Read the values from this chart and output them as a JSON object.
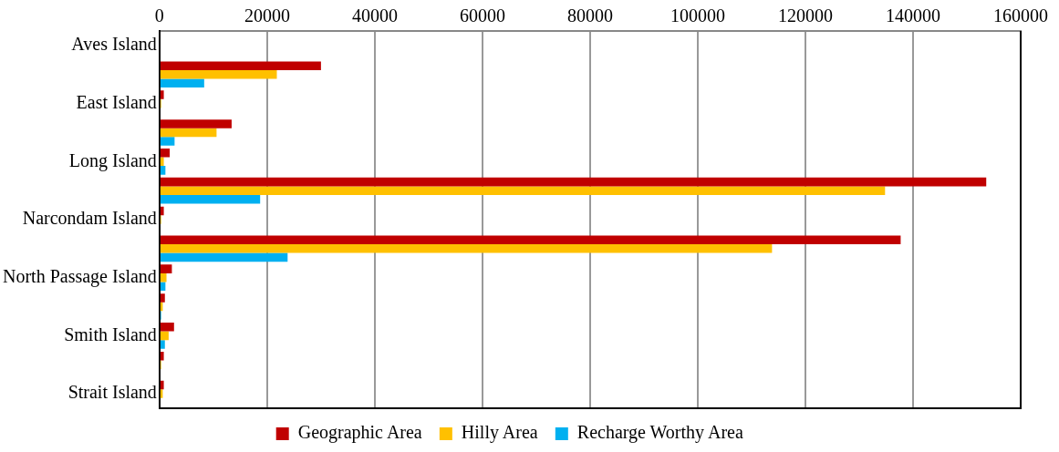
{
  "chart_data": {
    "type": "bar",
    "orientation": "horizontal",
    "categories": [
      "Aves Island",
      null,
      "East Island",
      null,
      "Long Island",
      null,
      "Narcondam Island",
      null,
      "North Passage Island",
      null,
      "Smith Island",
      null,
      "Strait Island"
    ],
    "series": [
      {
        "name": "Geographic Area",
        "color": "#c00000",
        "values": [
          0,
          30000,
          800,
          13400,
          1900,
          153600,
          800,
          137700,
          2300,
          1000,
          2700,
          800,
          800
        ]
      },
      {
        "name": "Hilly Area",
        "color": "#ffc000",
        "values": [
          0,
          21800,
          300,
          10600,
          800,
          134800,
          300,
          113800,
          1300,
          600,
          1700,
          300,
          600
        ]
      },
      {
        "name": "Recharge Worthy Area",
        "color": "#00b0f0",
        "values": [
          null,
          8300,
          null,
          2800,
          1100,
          18700,
          null,
          23800,
          1100,
          300,
          1000,
          null,
          null
        ]
      }
    ],
    "xlim": [
      0,
      160000
    ],
    "xticks": [
      0,
      20000,
      40000,
      60000,
      80000,
      100000,
      120000,
      140000,
      160000
    ],
    "grid": "x",
    "legend": "bottom"
  }
}
